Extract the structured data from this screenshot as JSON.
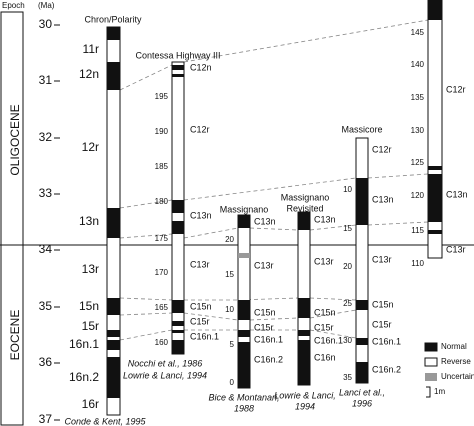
{
  "header": {
    "epoch": "Epoch",
    "unit": "(Ma)"
  },
  "epochs": [
    "OLIGOCENE",
    "EOCENE"
  ],
  "age_ticks": [
    "30",
    "31",
    "32",
    "33",
    "34",
    "35",
    "36",
    "37"
  ],
  "columns": [
    {
      "title": [
        "Chron/Polarity"
      ],
      "scale": [],
      "labels": [
        "11r",
        "12n",
        "12r",
        "13n",
        "13r",
        "15n",
        "15r",
        "16n.1",
        "16n.2",
        "16r"
      ],
      "caption": [
        "Conde & Kent, 1995"
      ]
    },
    {
      "title": [
        "Contessa Highway III"
      ],
      "scale": [
        "195",
        "190",
        "185",
        "180",
        "175",
        "170",
        "165",
        "160"
      ],
      "labels": [
        "C12n",
        "C12r",
        "C13n",
        "C13r",
        "C15n",
        "C15r",
        "C16n.1"
      ],
      "caption": [
        "Nocchi et al., 1986",
        "Lowrie & Lanci, 1994"
      ]
    },
    {
      "title": [
        "Massignano"
      ],
      "scale": [
        "20",
        "15",
        "10",
        "5",
        "0"
      ],
      "labels": [
        "C13n",
        "C13r",
        "C15n",
        "C15r",
        "C16n.1",
        "C16n.2"
      ],
      "caption": [
        "Bice & Montanari,",
        "1988"
      ]
    },
    {
      "title": [
        "Massignano",
        "Revisited"
      ],
      "scale": [],
      "labels": [
        "C13n",
        "C13r",
        "C15n",
        "C15r",
        "C16n.1",
        "C16n"
      ],
      "caption": [
        "Lowrie & Lanci,",
        "1994"
      ]
    },
    {
      "title": [
        "Massicore"
      ],
      "scale": [
        "10",
        "15",
        "20",
        "25",
        "30",
        "35"
      ],
      "labels": [
        "C12r",
        "C13n",
        "C13r",
        "C15n",
        "C15r",
        "C16n.1",
        "C16n.2"
      ],
      "caption": [
        "Lanci et al.,",
        "1996"
      ]
    },
    {
      "title": [],
      "scale": [
        "145",
        "140",
        "135",
        "130",
        "125",
        "120",
        "115",
        "110"
      ],
      "labels": [
        "C12r",
        "C13n",
        "C13r"
      ],
      "caption": []
    }
  ],
  "legend": [
    "Normal",
    "Reverse",
    "Uncertain",
    "1m"
  ]
}
